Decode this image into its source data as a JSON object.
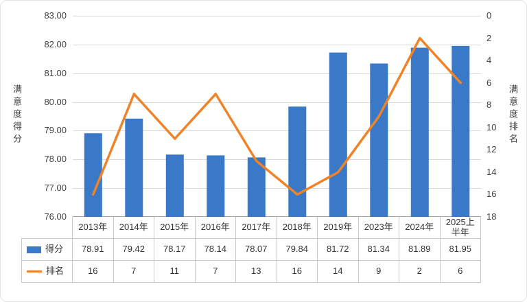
{
  "chart_data": {
    "type": "bar",
    "combo": "bar+line",
    "title": "",
    "categories": [
      "2013年",
      "2014年",
      "2015年",
      "2016年",
      "2017年",
      "2018年",
      "2019年",
      "2023年",
      "2024年",
      "2025上半年"
    ],
    "series": [
      {
        "name": "得分",
        "type": "bar",
        "color": "#3A78C8",
        "axis": "left",
        "values": [
          78.91,
          79.42,
          78.17,
          78.14,
          78.07,
          79.84,
          81.72,
          81.34,
          81.89,
          81.95
        ],
        "labels": [
          "78.91",
          "79.42",
          "78.17",
          "78.14",
          "78.07",
          "79.84",
          "81.72",
          "81.34",
          "81.89",
          "81.95"
        ]
      },
      {
        "name": "排名",
        "type": "line",
        "color": "#F08228",
        "axis": "right",
        "values": [
          16,
          7,
          11,
          7,
          13,
          16,
          14,
          9,
          2,
          6
        ],
        "labels": [
          "16",
          "7",
          "11",
          "7",
          "13",
          "16",
          "14",
          "9",
          "2",
          "6"
        ]
      }
    ],
    "left_axis": {
      "label": "满意度得分",
      "min": 76,
      "max": 83,
      "ticks": [
        "83.00",
        "82.00",
        "81.00",
        "80.00",
        "79.00",
        "78.00",
        "77.00",
        "76.00"
      ]
    },
    "right_axis": {
      "label": "满意度排名",
      "min": 0,
      "max": 18,
      "inverted": true,
      "ticks": [
        "0",
        "2",
        "4",
        "6",
        "8",
        "10",
        "12",
        "14",
        "16",
        "18"
      ]
    },
    "grid": true,
    "legend_position": "data-table-left"
  }
}
